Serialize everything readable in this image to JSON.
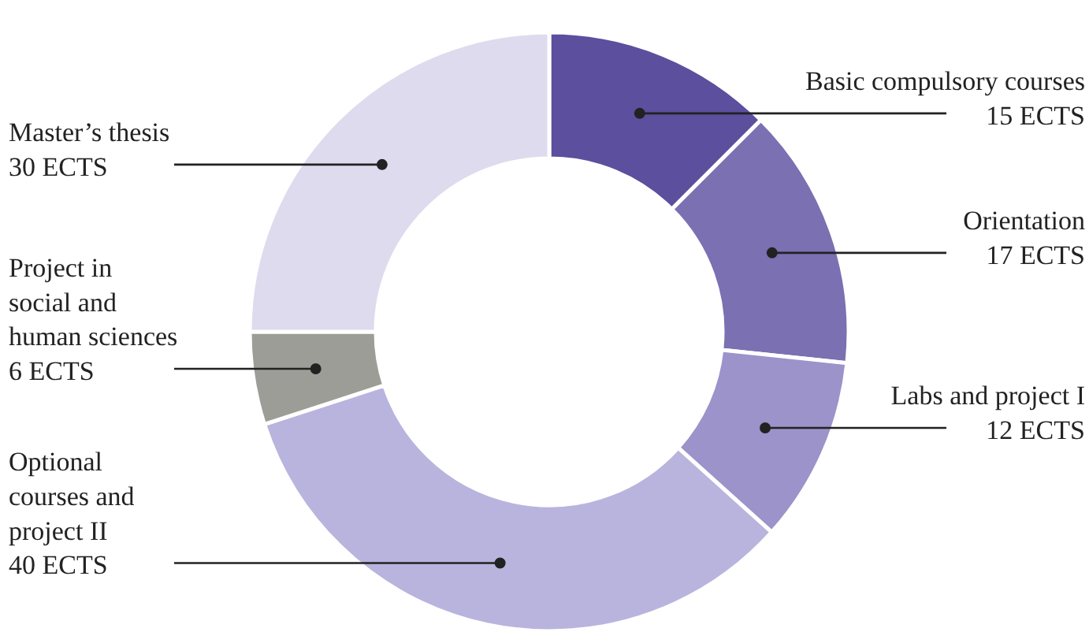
{
  "chart_data": {
    "type": "donut",
    "categories": [
      "Basic compulsory courses",
      "Orientation",
      "Labs and project I",
      "Optional courses and project II",
      "Project in social and human sciences",
      "Master’s thesis"
    ],
    "values": [
      15,
      17,
      12,
      40,
      6,
      30
    ],
    "value_labels": [
      "15 ECTS",
      "17 ECTS",
      "12 ECTS",
      "40 ECTS",
      "6 ECTS",
      "30 ECTS"
    ],
    "colors": [
      "#5b4f9e",
      "#7a70b2",
      "#9b93c9",
      "#b9b4dd",
      "#9d9d97",
      "#dedbee"
    ]
  }
}
